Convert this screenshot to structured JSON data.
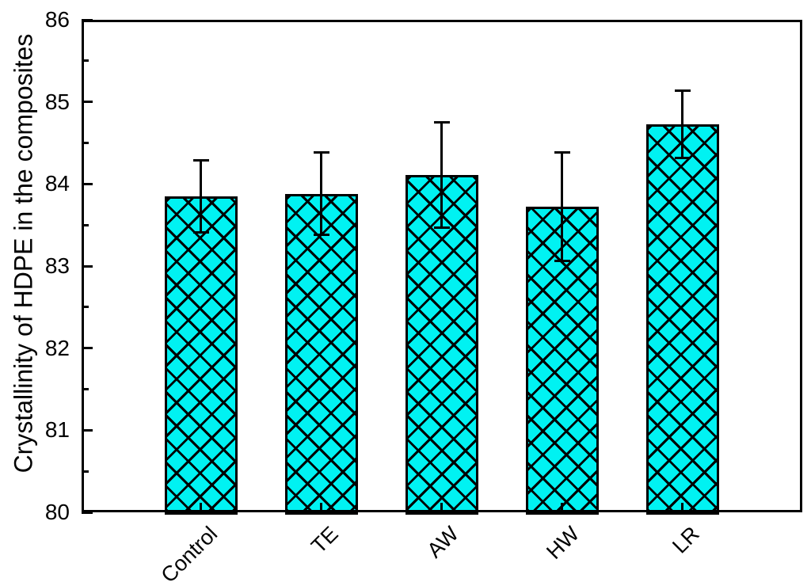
{
  "chart_data": {
    "type": "bar",
    "title": "",
    "xlabel": "",
    "ylabel": "Crystallinity of HDPE in the composites",
    "categories": [
      "Control",
      "TE",
      "AW",
      "HW",
      "LR"
    ],
    "series": [
      {
        "name": "Crystallinity of HDPE",
        "values": [
          83.85,
          83.88,
          84.11,
          83.72,
          84.73
        ],
        "errors": [
          0.44,
          0.5,
          0.64,
          0.66,
          0.41
        ]
      }
    ],
    "ylim": [
      80,
      86
    ],
    "yticks": [
      "80",
      "81",
      "82",
      "83",
      "84",
      "85",
      "86"
    ],
    "y_minor_tick_step": 0.5,
    "grid": false,
    "legend": null,
    "bar_style": {
      "fill_color": "#00F2F2",
      "hatch": "diagonal-crosshatch",
      "edge_color": "#000000",
      "error_bar_color": "#000000"
    },
    "axis_color": "#000000",
    "background_color": "#FFFFFF"
  }
}
